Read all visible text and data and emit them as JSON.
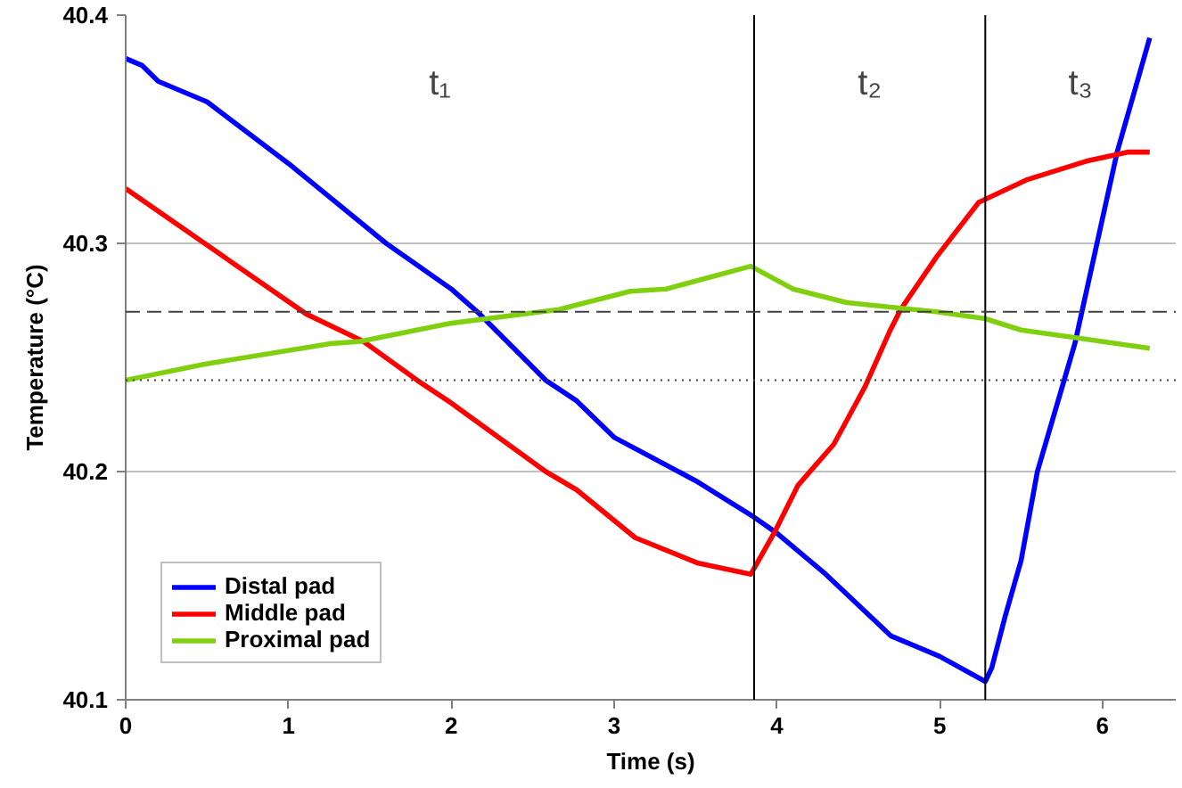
{
  "chart_data": {
    "type": "line",
    "xlabel": "Time (s)",
    "ylabel": "Temperature (°C)",
    "xlim": [
      0,
      6.45
    ],
    "xticks": [
      0,
      1,
      2,
      3,
      4,
      5,
      6
    ],
    "ylim": [
      40.1,
      40.4
    ],
    "yticks": [
      40.1,
      40.2,
      40.3,
      40.4
    ],
    "grid": "y",
    "legend": "bottom left",
    "marker": "none",
    "line_style": "solid",
    "series": [
      {
        "name": "Distal pad",
        "color": "#0000ff",
        "x": [
          0,
          0.1,
          0.2,
          0.5,
          1.0,
          1.6,
          2.0,
          2.16,
          2.58,
          2.77,
          3.0,
          3.5,
          3.86,
          4.0,
          4.3,
          4.7,
          5.0,
          5.28,
          5.32,
          5.4,
          5.5,
          5.6,
          5.83,
          6.09,
          6.29
        ],
        "values": [
          40.381,
          40.378,
          40.371,
          40.362,
          40.335,
          40.3,
          40.28,
          40.27,
          40.24,
          40.231,
          40.215,
          40.196,
          40.18,
          40.173,
          40.155,
          40.128,
          40.119,
          40.108,
          40.114,
          40.136,
          40.161,
          40.2,
          40.256,
          40.34,
          40.39
        ]
      },
      {
        "name": "Middle pad",
        "color": "#ff0000",
        "x": [
          0,
          1.11,
          1.46,
          1.79,
          2.0,
          2.58,
          2.77,
          3.13,
          3.51,
          3.84,
          3.99,
          4.13,
          4.35,
          4.54,
          4.69,
          4.76,
          4.98,
          5.24,
          5.54,
          5.9,
          6.16,
          6.29
        ],
        "values": [
          40.324,
          40.269,
          40.257,
          40.24,
          40.23,
          40.2,
          40.192,
          40.171,
          40.16,
          40.155,
          40.174,
          40.194,
          40.212,
          40.237,
          40.261,
          40.271,
          40.294,
          40.318,
          40.328,
          40.336,
          40.34,
          40.34
        ]
      },
      {
        "name": "Proximal pad",
        "color": "#80d010",
        "x": [
          0,
          0.48,
          1.25,
          1.44,
          2.0,
          2.66,
          3.1,
          3.32,
          3.84,
          4.1,
          4.43,
          4.98,
          5.28,
          5.5,
          5.9,
          6.29
        ],
        "values": [
          40.24,
          40.247,
          40.256,
          40.257,
          40.265,
          40.271,
          40.279,
          40.28,
          40.29,
          40.28,
          40.274,
          40.27,
          40.267,
          40.262,
          40.258,
          40.254
        ]
      }
    ],
    "ref_lines": [
      {
        "axis": "x",
        "value": 3.86,
        "color": "#000000",
        "line_style": "solid"
      },
      {
        "axis": "x",
        "value": 5.28,
        "color": "#000000",
        "line_style": "solid"
      },
      {
        "axis": "y",
        "value": 40.27,
        "color": "#404040",
        "line_style": "dashed"
      },
      {
        "axis": "y",
        "value": 40.24,
        "color": "#404040",
        "line_style": "dotted"
      }
    ],
    "annotations": [
      "t₁",
      "t₂",
      "t₃"
    ]
  }
}
